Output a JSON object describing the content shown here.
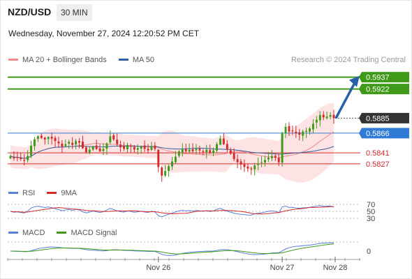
{
  "header": {
    "symbol": "NZD/USD",
    "timeframe": "30 MIN",
    "datetime": "Wednesday, November 27, 2024 12:20:52 PM CET"
  },
  "legend_main": {
    "items": [
      {
        "label": "MA 20 + Bollinger Bands",
        "color": "#f08a8a"
      },
      {
        "label": "MA 50",
        "color": "#2f5f9e"
      }
    ]
  },
  "credit": "Research © 2024 Trading Central",
  "legend_rsi": {
    "items": [
      {
        "label": "RSI",
        "color": "#5b7fd6"
      },
      {
        "label": "9MA",
        "color": "#d42a2a"
      }
    ]
  },
  "legend_macd": {
    "items": [
      {
        "label": "MACD",
        "color": "#5b7fd6"
      },
      {
        "label": "MACD Signal",
        "color": "#3f9a1a"
      }
    ]
  },
  "colors": {
    "up": "#3f9a1a",
    "down": "#d42a2a",
    "ma50": "#2f5f9e",
    "ma20": "#f08a8a",
    "band": "#fde3e3",
    "resistance": "#3f9a1a",
    "pivot": "#2f7bd6",
    "support": "#d42a2a",
    "current": "#333333",
    "arrow": "#2860a8"
  },
  "chart_data": [
    {
      "type": "candlestick",
      "title": "NZD/USD 30 MIN",
      "x_ticks": [
        "Nov 26",
        "Nov 27",
        "Nov 28"
      ],
      "ylim": [
        0.5803,
        0.595
      ],
      "levels": [
        {
          "value": 0.5937,
          "label": "0.5937",
          "kind": "resistance"
        },
        {
          "value": 0.5922,
          "label": "0.5922",
          "kind": "resistance"
        },
        {
          "value": 0.5885,
          "label": "0.5885",
          "kind": "current"
        },
        {
          "value": 0.5866,
          "label": "0.5866",
          "kind": "pivot"
        },
        {
          "value": 0.5841,
          "label": "0.5841",
          "kind": "support"
        },
        {
          "value": 0.5827,
          "label": "0.5827",
          "kind": "support"
        }
      ],
      "close": [
        0.5837,
        0.5834,
        0.5835,
        0.5833,
        0.5831,
        0.5837,
        0.585,
        0.5858,
        0.5862,
        0.586,
        0.5858,
        0.5861,
        0.5859,
        0.5856,
        0.5853,
        0.5849,
        0.5852,
        0.5855,
        0.5851,
        0.5856,
        0.5854,
        0.5847,
        0.5842,
        0.5845,
        0.5849,
        0.5846,
        0.5843,
        0.5846,
        0.5853,
        0.5862,
        0.5858,
        0.5852,
        0.5848,
        0.5846,
        0.5851,
        0.5849,
        0.5845,
        0.5847,
        0.5849,
        0.5846,
        0.5844,
        0.5849,
        0.5846,
        0.5823,
        0.5812,
        0.5818,
        0.5824,
        0.583,
        0.5836,
        0.5843,
        0.5846,
        0.5843,
        0.5845,
        0.5843,
        0.5846,
        0.5844,
        0.5842,
        0.5845,
        0.5841,
        0.5844,
        0.5852,
        0.5859,
        0.5852,
        0.5845,
        0.584,
        0.5833,
        0.5829,
        0.5826,
        0.5823,
        0.5821,
        0.582,
        0.5825,
        0.5827,
        0.5829,
        0.5832,
        0.5835,
        0.5837,
        0.5835,
        0.5829,
        0.5866,
        0.5874,
        0.5868,
        0.5869,
        0.5866,
        0.5864,
        0.5868,
        0.5869,
        0.5872,
        0.5878,
        0.5883,
        0.5889,
        0.5886,
        0.5887,
        0.5889,
        0.5885
      ],
      "overlays": {
        "ma20": {
          "start": 0.5847,
          "end": 0.5875
        },
        "ma50": {
          "start": 0.5844,
          "end": 0.5856
        }
      },
      "target_arrow": {
        "from": 0.5885,
        "to": 0.5937
      }
    },
    {
      "type": "line",
      "name": "RSI",
      "yticks": [
        70,
        50,
        30
      ],
      "ylim": [
        20,
        80
      ],
      "series": [
        {
          "name": "RSI"
        },
        {
          "name": "9MA"
        }
      ]
    },
    {
      "type": "line",
      "name": "MACD",
      "yticks": [
        0
      ],
      "series": [
        {
          "name": "MACD"
        },
        {
          "name": "MACD Signal"
        }
      ]
    }
  ]
}
